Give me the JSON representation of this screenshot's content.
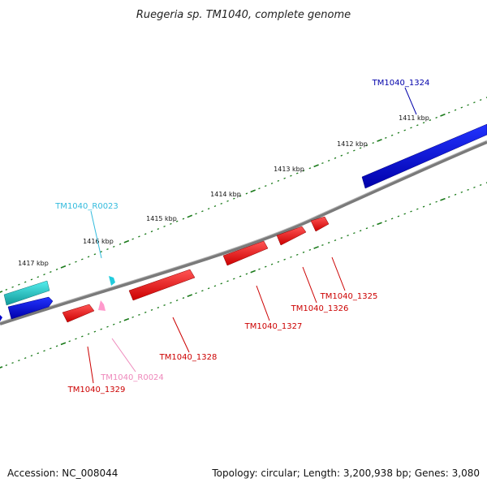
{
  "title": "Ruegeria sp. TM1040, complete genome",
  "footer": {
    "accession": "Accession: NC_008044",
    "summary": "Topology: circular; Length: 3,200,938 bp; Genes: 3,080"
  },
  "colors": {
    "backbone": "#7a7a7a",
    "tick": "#1a7a1a",
    "forward_cds": "#0000dd",
    "reverse_cds": "#ee0000",
    "trna": "#22cccc",
    "rrna": "#ff99cc",
    "forward_label": "#0000aa",
    "reverse_label": "#cc0000",
    "trna_label": "#33bbdd",
    "rrna_label": "#ee88bb"
  },
  "kbp_labels": [
    "1411 kbp",
    "1412 kbp",
    "1413 kbp",
    "1414 kbp",
    "1415 kbp",
    "1416 kbp",
    "1417 kbp"
  ],
  "features": [
    {
      "id": "TM1040_1324",
      "strand": "forward",
      "type": "CDS"
    },
    {
      "id": "TM1040_R0023",
      "strand": "forward",
      "type": "tRNA"
    },
    {
      "id": "TM1040_1325",
      "strand": "reverse",
      "type": "CDS"
    },
    {
      "id": "TM1040_1326",
      "strand": "reverse",
      "type": "CDS"
    },
    {
      "id": "TM1040_1327",
      "strand": "reverse",
      "type": "CDS"
    },
    {
      "id": "TM1040_1328",
      "strand": "reverse",
      "type": "CDS"
    },
    {
      "id": "TM1040_R0024",
      "strand": "reverse",
      "type": "rRNA"
    },
    {
      "id": "TM1040_1329",
      "strand": "reverse",
      "type": "CDS"
    }
  ]
}
